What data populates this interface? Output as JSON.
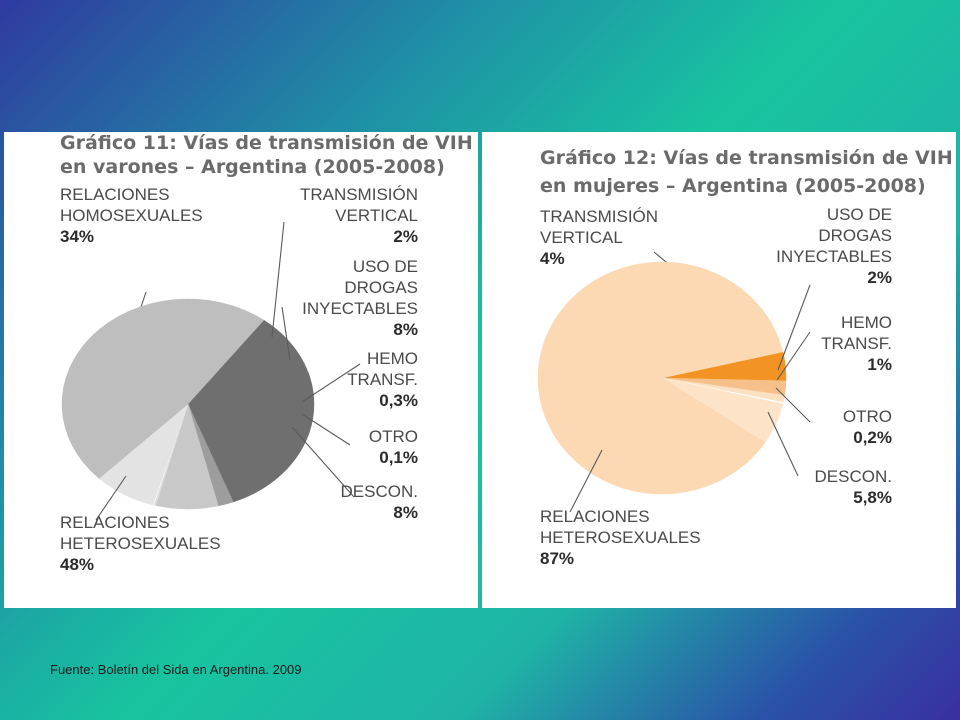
{
  "chart_data": [
    {
      "type": "pie",
      "title_line1": "Gráfico 11: Vías de transmisión de VIH",
      "title_line2": "en varones – Argentina (2005-2008)",
      "slices": [
        {
          "label_lines": [
            "RELACIONES",
            "HOMOSEXUALES"
          ],
          "pct_label": "34%",
          "value": 34,
          "color": "#6f6f6f"
        },
        {
          "label_lines": [
            "TRANSMISIÓN",
            "VERTICAL"
          ],
          "pct_label": "2%",
          "value": 2,
          "color": "#9d9d9d"
        },
        {
          "label_lines": [
            "USO DE",
            "DROGAS",
            "INYECTABLES"
          ],
          "pct_label": "8%",
          "value": 8,
          "color": "#c8c8c8"
        },
        {
          "label_lines": [
            "HEMO",
            "TRANSF."
          ],
          "pct_label": "0,3%",
          "value": 0.3,
          "color": "#dcdcdc"
        },
        {
          "label_lines": [
            "OTRO"
          ],
          "pct_label": "0,1%",
          "value": 0.1,
          "color": "#ffffff"
        },
        {
          "label_lines": [
            "DESCON."
          ],
          "pct_label": "8%",
          "value": 8,
          "color": "#e3e3e3"
        },
        {
          "label_lines": [
            "RELACIONES",
            "HETEROSEXUALES"
          ],
          "pct_label": "48%",
          "value": 48,
          "color": "#bebebe"
        }
      ]
    },
    {
      "type": "pie",
      "title_line1": "Gráfico 12: Vías de transmisión de VIH",
      "title_line2": "en mujeres – Argentina (2005-2008)",
      "slices": [
        {
          "label_lines": [
            "TRANSMISIÓN",
            "VERTICAL"
          ],
          "pct_label": "4%",
          "value": 4,
          "color": "#f39323"
        },
        {
          "label_lines": [
            "USO DE",
            "DROGAS",
            "INYECTABLES"
          ],
          "pct_label": "2%",
          "value": 2,
          "color": "#f6c08a"
        },
        {
          "label_lines": [
            "HEMO",
            "TRANSF."
          ],
          "pct_label": "1%",
          "value": 1,
          "color": "#fbe0c2"
        },
        {
          "label_lines": [
            "OTRO"
          ],
          "pct_label": "0,2%",
          "value": 0.2,
          "color": "#ffffff"
        },
        {
          "label_lines": [
            "DESCON."
          ],
          "pct_label": "5,8%",
          "value": 5.8,
          "color": "#fde3c8"
        },
        {
          "label_lines": [
            "RELACIONES",
            "HETEROSEXUALES"
          ],
          "pct_label": "87%",
          "value": 87,
          "color": "#fcd8b3"
        }
      ]
    }
  ],
  "source": "Fuente: Boletín del Sida en Argentina. 2009"
}
